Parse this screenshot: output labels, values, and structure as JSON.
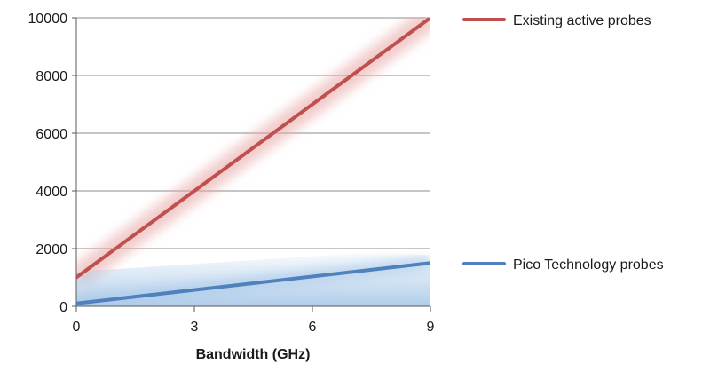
{
  "chart_data": {
    "type": "line",
    "title": "",
    "xlabel": "Bandwidth (GHz)",
    "ylabel": "",
    "xlim": [
      0,
      9
    ],
    "ylim": [
      0,
      10000
    ],
    "x_ticks": [
      0,
      3,
      6,
      9
    ],
    "y_ticks": [
      0,
      2000,
      4000,
      6000,
      8000,
      10000
    ],
    "grid": "horizontal",
    "legend": "right",
    "series": [
      {
        "name": "Existing active probes",
        "color": "#c0504d",
        "band_color": "#e8a3a3",
        "x": [
          0,
          9
        ],
        "y": [
          1000,
          10000
        ]
      },
      {
        "name": "Pico Technology probes",
        "color": "#4f81bd",
        "band_color": "#a8c8e8",
        "x": [
          0,
          9
        ],
        "y": [
          100,
          1500
        ]
      }
    ]
  }
}
